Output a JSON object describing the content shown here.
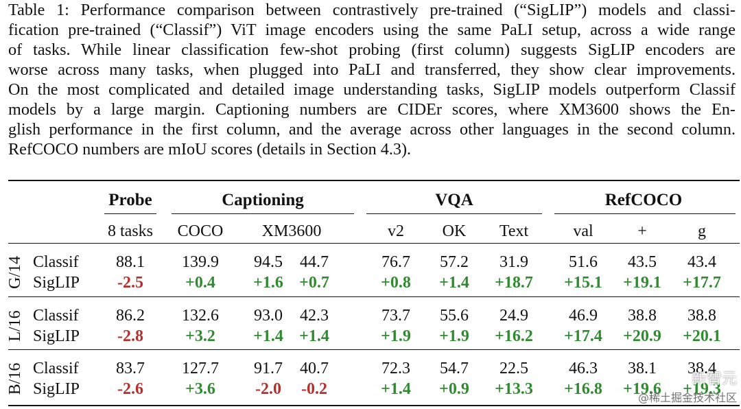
{
  "caption": {
    "lines": [
      "Table 1: Performance comparison between contrastively pre-trained (“SigLIP”) models and classi-",
      "fication pre-trained (“Classif”) ViT image encoders using the same PaLI setup, across a wide range",
      "of tasks.  While linear classification few-shot probing (first column) suggests SigLIP encoders are",
      "worse across many tasks, when plugged into PaLI and transferred, they show clear improvements.",
      "On the most complicated and detailed image understanding tasks, SigLIP models outperform Classif",
      "models by a large margin.  Captioning numbers are CIDEr scores, where XM3600 shows the En-",
      "glish performance in the first column, and the average across other languages in the second column.",
      "RefCOCO numbers are mIoU scores (details in Section 4.3)."
    ]
  },
  "table": {
    "group_headers": [
      "Probe",
      "Captioning",
      "VQA",
      "RefCOCO"
    ],
    "sub_headers": [
      "8 tasks",
      "COCO",
      "XM3600",
      "v2",
      "OK",
      "Text",
      "val",
      "+",
      "g"
    ],
    "groups": [
      {
        "name": "G/14",
        "rows": [
          {
            "label": "Classif",
            "values": [
              "88.1",
              "139.9",
              "94.5",
              "44.7",
              "76.7",
              "57.2",
              "31.9",
              "51.6",
              "43.5",
              "43.4"
            ]
          },
          {
            "label": "SigLIP",
            "values": [
              "-2.5",
              "+0.4",
              "+1.6",
              "+0.7",
              "+0.8",
              "+1.4",
              "+18.7",
              "+15.1",
              "+19.1",
              "+17.7"
            ]
          }
        ]
      },
      {
        "name": "L/16",
        "rows": [
          {
            "label": "Classif",
            "values": [
              "86.2",
              "132.6",
              "93.0",
              "42.3",
              "73.7",
              "55.6",
              "24.9",
              "46.9",
              "38.8",
              "38.8"
            ]
          },
          {
            "label": "SigLIP",
            "values": [
              "-2.8",
              "+3.2",
              "+1.4",
              "+1.4",
              "+1.9",
              "+1.9",
              "+16.2",
              "+17.4",
              "+20.9",
              "+20.1"
            ]
          }
        ]
      },
      {
        "name": "B/16",
        "rows": [
          {
            "label": "Classif",
            "values": [
              "83.7",
              "127.7",
              "91.7",
              "40.7",
              "72.3",
              "54.7",
              "22.5",
              "46.3",
              "38.1",
              "38.4"
            ]
          },
          {
            "label": "SigLIP",
            "values": [
              "-2.6",
              "+3.6",
              "-2.0",
              "-0.2",
              "+1.4",
              "+0.9",
              "+13.3",
              "+16.8",
              "+19.6",
              "+19.3"
            ]
          }
        ]
      }
    ]
  },
  "watermark": {
    "line1": "新智元",
    "line2": "@稀土掘金技术社区"
  },
  "colors": {
    "negative": "#b3312c",
    "positive": "#2e8b2e"
  }
}
